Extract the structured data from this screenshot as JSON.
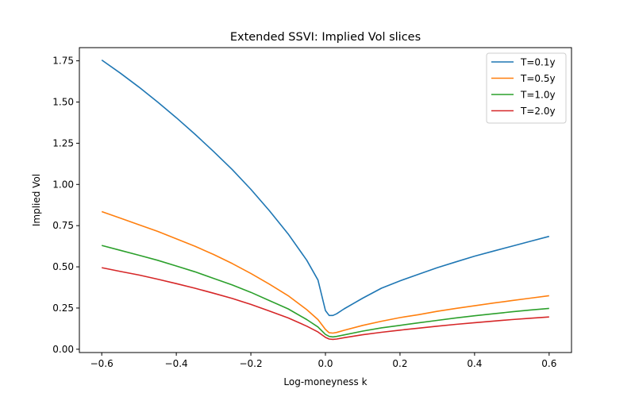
{
  "chart_data": {
    "type": "line",
    "title": "Extended SSVI: Implied Vol slices",
    "xlabel": "Log-moneyness k",
    "ylabel": "Implied Vol",
    "xlim": [
      -0.66,
      0.66
    ],
    "ylim": [
      -0.02,
      1.83
    ],
    "xticks": [
      -0.6,
      -0.4,
      -0.2,
      0.0,
      0.2,
      0.4,
      0.6
    ],
    "xtick_labels": [
      "−0.6",
      "−0.4",
      "−0.2",
      "0.0",
      "0.2",
      "0.4",
      "0.6"
    ],
    "yticks": [
      0.0,
      0.25,
      0.5,
      0.75,
      1.0,
      1.25,
      1.5,
      1.75
    ],
    "ytick_labels": [
      "0.00",
      "0.25",
      "0.50",
      "0.75",
      "1.00",
      "1.25",
      "1.50",
      "1.75"
    ],
    "grid": false,
    "legend_position": "top-right",
    "x": [
      -0.6,
      -0.55,
      -0.5,
      -0.45,
      -0.4,
      -0.35,
      -0.3,
      -0.25,
      -0.2,
      -0.15,
      -0.1,
      -0.05,
      -0.02,
      0.0,
      0.01,
      0.02,
      0.03,
      0.05,
      0.1,
      0.15,
      0.2,
      0.25,
      0.3,
      0.35,
      0.4,
      0.45,
      0.5,
      0.55,
      0.6
    ],
    "series": [
      {
        "name": "T=0.1y",
        "color": "#1f77b4",
        "values": [
          1.755,
          1.675,
          1.59,
          1.5,
          1.405,
          1.305,
          1.2,
          1.09,
          0.97,
          0.84,
          0.7,
          0.54,
          0.42,
          0.235,
          0.205,
          0.205,
          0.215,
          0.245,
          0.31,
          0.37,
          0.415,
          0.455,
          0.495,
          0.53,
          0.565,
          0.595,
          0.625,
          0.655,
          0.685
        ]
      },
      {
        "name": "T=0.5y",
        "color": "#ff7f0e",
        "values": [
          0.835,
          0.795,
          0.755,
          0.715,
          0.67,
          0.625,
          0.575,
          0.52,
          0.46,
          0.395,
          0.325,
          0.24,
          0.18,
          0.12,
          0.1,
          0.098,
          0.102,
          0.115,
          0.145,
          0.17,
          0.192,
          0.21,
          0.23,
          0.248,
          0.264,
          0.28,
          0.295,
          0.31,
          0.325
        ]
      },
      {
        "name": "T=1.0y",
        "color": "#2ca02c",
        "values": [
          0.63,
          0.6,
          0.57,
          0.54,
          0.505,
          0.47,
          0.43,
          0.39,
          0.345,
          0.295,
          0.245,
          0.18,
          0.135,
          0.09,
          0.078,
          0.075,
          0.078,
          0.087,
          0.11,
          0.13,
          0.145,
          0.16,
          0.175,
          0.19,
          0.203,
          0.215,
          0.227,
          0.238,
          0.248
        ]
      },
      {
        "name": "T=2.0y",
        "color": "#d62728",
        "values": [
          0.495,
          0.472,
          0.45,
          0.425,
          0.398,
          0.37,
          0.34,
          0.308,
          0.272,
          0.232,
          0.19,
          0.14,
          0.105,
          0.072,
          0.062,
          0.06,
          0.062,
          0.07,
          0.088,
          0.103,
          0.116,
          0.128,
          0.14,
          0.151,
          0.161,
          0.171,
          0.18,
          0.188,
          0.196
        ]
      }
    ]
  }
}
